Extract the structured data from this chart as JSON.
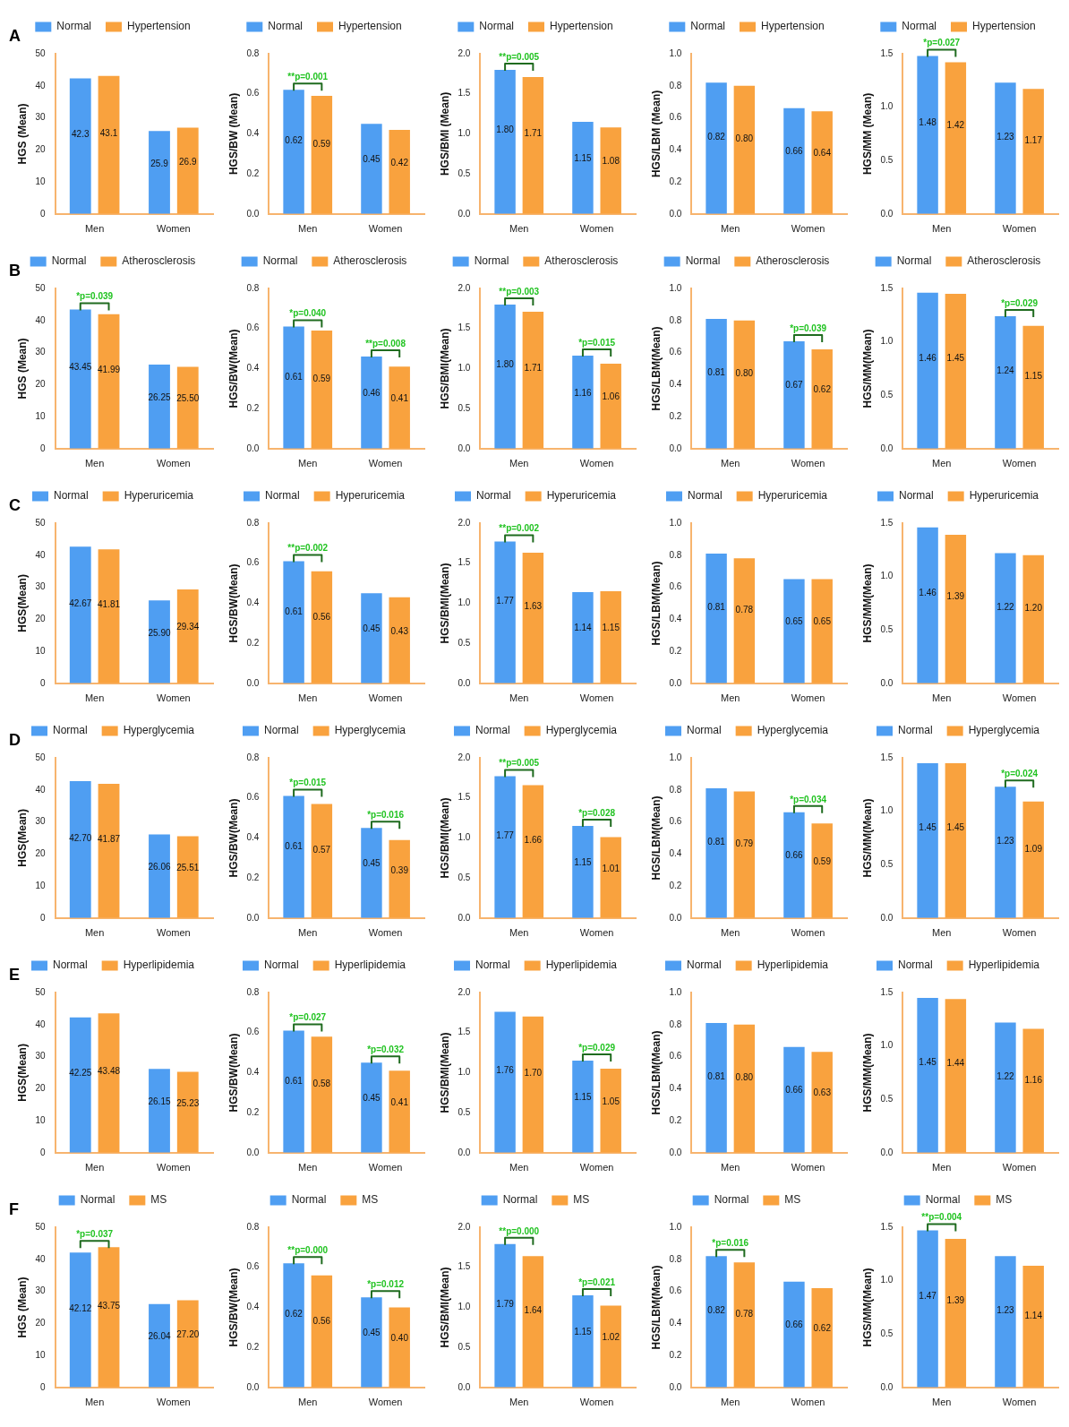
{
  "chart_data": [
    {
      "type": "bar",
      "categories": [
        "Men",
        "Women"
      ],
      "ylabel": "HGS (Mean)",
      "ylim": [
        0,
        50
      ],
      "yticks": [
        0,
        10,
        20,
        30,
        40,
        50
      ],
      "legend": "top",
      "annotations": [
        "A"
      ],
      "series": [
        {
          "name": "Normal",
          "color": "#4f9ef2",
          "values": [
            42.3,
            25.9
          ],
          "value_labels": [
            "42.3",
            "25.9"
          ]
        },
        {
          "name": "Hypertension",
          "color": "#f9a23e",
          "values": [
            43.1,
            26.9
          ],
          "value_labels": [
            "43.1",
            "26.9"
          ]
        }
      ]
    },
    {
      "type": "bar",
      "categories": [
        "Men",
        "Women"
      ],
      "ylabel": "HGS/BW (Mean)",
      "ylim": [
        0,
        0.8
      ],
      "yticks": [
        {
          "value": 0,
          "label": "0.0"
        },
        {
          "value": 0.2,
          "label": "0.2"
        },
        {
          "value": 0.4,
          "label": "0.4"
        },
        {
          "value": 0.6,
          "label": "0.6"
        },
        {
          "value": 0.8,
          "label": "0.8"
        }
      ],
      "legend": "top",
      "annotations": [
        {
          "text": "**p=0.001",
          "x": "Men",
          "y": 0.62
        }
      ],
      "series": [
        {
          "name": "Normal",
          "color": "#4f9ef2",
          "values": [
            0.62,
            0.45
          ],
          "value_labels": [
            "0.62",
            "0.45"
          ]
        },
        {
          "name": "Hypertension",
          "color": "#f9a23e",
          "values": [
            0.59,
            0.42
          ],
          "value_labels": [
            "0.59",
            "0.42"
          ]
        }
      ]
    },
    {
      "type": "bar",
      "categories": [
        "Men",
        "Women"
      ],
      "ylabel": "HGS/BMI (Mean)",
      "ylim": [
        0,
        2
      ],
      "yticks": [
        {
          "value": 0,
          "label": "0.0"
        },
        {
          "value": 0.5,
          "label": "0.5"
        },
        {
          "value": 1,
          "label": "1.0"
        },
        {
          "value": 1.5,
          "label": "1.5"
        },
        {
          "value": 2,
          "label": "2.0"
        }
      ],
      "legend": "top",
      "annotations": [
        {
          "text": "**p=0.005",
          "x": "Men",
          "y": 1.8
        }
      ],
      "series": [
        {
          "name": "Normal",
          "color": "#4f9ef2",
          "values": [
            1.8,
            1.15
          ],
          "value_labels": [
            "1.80",
            "1.15"
          ]
        },
        {
          "name": "Hypertension",
          "color": "#f9a23e",
          "values": [
            1.71,
            1.08
          ],
          "value_labels": [
            "1.71",
            "1.08"
          ]
        }
      ]
    },
    {
      "type": "bar",
      "categories": [
        "Men",
        "Women"
      ],
      "ylabel": "HGS/LBM (Mean)",
      "ylim": [
        0,
        1
      ],
      "yticks": [
        {
          "value": 0,
          "label": "0.0"
        },
        {
          "value": 0.2,
          "label": "0.2"
        },
        {
          "value": 0.4,
          "label": "0.4"
        },
        {
          "value": 0.6,
          "label": "0.6"
        },
        {
          "value": 0.8,
          "label": "0.8"
        },
        {
          "value": 1,
          "label": "1.0"
        }
      ],
      "legend": "top",
      "series": [
        {
          "name": "Normal",
          "color": "#4f9ef2",
          "values": [
            0.82,
            0.66
          ],
          "value_labels": [
            "0.82",
            "0.66"
          ]
        },
        {
          "name": "Hypertension",
          "color": "#f9a23e",
          "values": [
            0.8,
            0.64
          ],
          "value_labels": [
            "0.80",
            "0.64"
          ]
        }
      ]
    },
    {
      "type": "bar",
      "categories": [
        "Men",
        "Women"
      ],
      "ylabel": "HGS/MM (Mean)",
      "ylim": [
        0,
        1.5
      ],
      "yticks": [
        {
          "value": 0,
          "label": "0.0"
        },
        {
          "value": 0.5,
          "label": "0.5"
        },
        {
          "value": 1,
          "label": "1.0"
        },
        {
          "value": 1.5,
          "label": "1.5"
        }
      ],
      "legend": "top",
      "annotations": [
        {
          "text": "*p=0.027",
          "x": "Men",
          "y": 1.48
        }
      ],
      "series": [
        {
          "name": "Normal",
          "color": "#4f9ef2",
          "values": [
            1.48,
            1.23
          ],
          "value_labels": [
            "1.48",
            "1.23"
          ]
        },
        {
          "name": "Hypertension",
          "color": "#f9a23e",
          "values": [
            1.42,
            1.17
          ],
          "value_labels": [
            "1.42",
            "1.17"
          ]
        }
      ]
    },
    {
      "type": "bar",
      "categories": [
        "Men",
        "Women"
      ],
      "ylabel": "HGS (Mean)",
      "ylim": [
        0,
        50
      ],
      "yticks": [
        0,
        10,
        20,
        30,
        40,
        50
      ],
      "legend": "top",
      "annotations": [
        "B",
        {
          "text": "*p=0.039",
          "x": "Men",
          "y": 43.45
        }
      ],
      "series": [
        {
          "name": "Normal",
          "color": "#4f9ef2",
          "values": [
            43.45,
            26.25
          ],
          "value_labels": [
            "43.45",
            "26.25"
          ]
        },
        {
          "name": "Atherosclerosis",
          "color": "#f9a23e",
          "values": [
            41.99,
            25.5
          ],
          "value_labels": [
            "41.99",
            "25.50"
          ]
        }
      ]
    },
    {
      "type": "bar",
      "categories": [
        "Men",
        "Women"
      ],
      "ylabel": "HGS/BW(Mean)",
      "ylim": [
        0,
        0.8
      ],
      "yticks": [
        {
          "value": 0,
          "label": "0.0"
        },
        {
          "value": 0.2,
          "label": "0.2"
        },
        {
          "value": 0.4,
          "label": "0.4"
        },
        {
          "value": 0.6,
          "label": "0.6"
        },
        {
          "value": 0.8,
          "label": "0.8"
        }
      ],
      "legend": "top",
      "annotations": [
        {
          "text": "*p=0.040",
          "x": "Men",
          "y": 0.61
        },
        {
          "text": "**p=0.008",
          "x": "Women",
          "y": 0.46
        }
      ],
      "series": [
        {
          "name": "Normal",
          "color": "#4f9ef2",
          "values": [
            0.61,
            0.46
          ],
          "value_labels": [
            "0.61",
            "0.46"
          ]
        },
        {
          "name": "Atherosclerosis",
          "color": "#f9a23e",
          "values": [
            0.59,
            0.41
          ],
          "value_labels": [
            "0.59",
            "0.41"
          ]
        }
      ]
    },
    {
      "type": "bar",
      "categories": [
        "Men",
        "Women"
      ],
      "ylabel": "HGS/BMI(Mean)",
      "ylim": [
        0,
        2
      ],
      "yticks": [
        {
          "value": 0,
          "label": "0.0"
        },
        {
          "value": 0.5,
          "label": "0.5"
        },
        {
          "value": 1,
          "label": "1.0"
        },
        {
          "value": 1.5,
          "label": "1.5"
        },
        {
          "value": 2,
          "label": "2.0"
        }
      ],
      "legend": "top",
      "annotations": [
        {
          "text": "**p=0.003",
          "x": "Men",
          "y": 1.8
        },
        {
          "text": "*p=0.015",
          "x": "Women",
          "y": 1.16
        }
      ],
      "series": [
        {
          "name": "Normal",
          "color": "#4f9ef2",
          "values": [
            1.8,
            1.16
          ],
          "value_labels": [
            "1.80",
            "1.16"
          ]
        },
        {
          "name": "Atherosclerosis",
          "color": "#f9a23e",
          "values": [
            1.71,
            1.06
          ],
          "value_labels": [
            "1.71",
            "1.06"
          ]
        }
      ]
    },
    {
      "type": "bar",
      "categories": [
        "Men",
        "Women"
      ],
      "ylabel": "HGS/LBM(Mean)",
      "ylim": [
        0,
        1
      ],
      "yticks": [
        {
          "value": 0,
          "label": "0.0"
        },
        {
          "value": 0.2,
          "label": "0.2"
        },
        {
          "value": 0.4,
          "label": "0.4"
        },
        {
          "value": 0.6,
          "label": "0.6"
        },
        {
          "value": 0.8,
          "label": "0.8"
        },
        {
          "value": 1,
          "label": "1.0"
        }
      ],
      "legend": "top",
      "annotations": [
        {
          "text": "*p=0.039",
          "x": "Women",
          "y": 0.67
        }
      ],
      "series": [
        {
          "name": "Normal",
          "color": "#4f9ef2",
          "values": [
            0.81,
            0.67
          ],
          "value_labels": [
            "0.81",
            "0.67"
          ]
        },
        {
          "name": "Atherosclerosis",
          "color": "#f9a23e",
          "values": [
            0.8,
            0.62
          ],
          "value_labels": [
            "0.80",
            "0.62"
          ]
        }
      ]
    },
    {
      "type": "bar",
      "categories": [
        "Men",
        "Women"
      ],
      "ylabel": "HGS/MM(Mean)",
      "ylim": [
        0,
        1.5
      ],
      "yticks": [
        {
          "value": 0,
          "label": "0.0"
        },
        {
          "value": 0.5,
          "label": "0.5"
        },
        {
          "value": 1,
          "label": "1.0"
        },
        {
          "value": 1.5,
          "label": "1.5"
        }
      ],
      "legend": "top",
      "annotations": [
        {
          "text": "*p=0.029",
          "x": "Women",
          "y": 1.24
        }
      ],
      "series": [
        {
          "name": "Normal",
          "color": "#4f9ef2",
          "values": [
            1.46,
            1.24
          ],
          "value_labels": [
            "1.46",
            "1.24"
          ]
        },
        {
          "name": "Atherosclerosis",
          "color": "#f9a23e",
          "values": [
            1.45,
            1.15
          ],
          "value_labels": [
            "1.45",
            "1.15"
          ]
        }
      ]
    },
    {
      "type": "bar",
      "categories": [
        "Men",
        "Women"
      ],
      "ylabel": "HGS(Mean)",
      "ylim": [
        0,
        50
      ],
      "yticks": [
        0,
        10,
        20,
        30,
        40,
        50
      ],
      "legend": "top",
      "annotations": [
        "C"
      ],
      "series": [
        {
          "name": "Normal",
          "color": "#4f9ef2",
          "values": [
            42.67,
            25.9
          ],
          "value_labels": [
            "42.67",
            "25.90"
          ]
        },
        {
          "name": "Hyperuricemia",
          "color": "#f9a23e",
          "values": [
            41.81,
            29.34
          ],
          "value_labels": [
            "41.81",
            "29.34"
          ]
        }
      ]
    },
    {
      "type": "bar",
      "categories": [
        "Men",
        "Women"
      ],
      "ylabel": "HGS/BW(Mean)",
      "ylim": [
        0,
        0.8
      ],
      "yticks": [
        {
          "value": 0,
          "label": "0.0"
        },
        {
          "value": 0.2,
          "label": "0.2"
        },
        {
          "value": 0.4,
          "label": "0.4"
        },
        {
          "value": 0.6,
          "label": "0.6"
        },
        {
          "value": 0.8,
          "label": "0.8"
        }
      ],
      "legend": "top",
      "annotations": [
        {
          "text": "**p=0.002",
          "x": "Men",
          "y": 0.61
        }
      ],
      "series": [
        {
          "name": "Normal",
          "color": "#4f9ef2",
          "values": [
            0.61,
            0.45
          ],
          "value_labels": [
            "0.61",
            "0.45"
          ]
        },
        {
          "name": "Hyperuricemia",
          "color": "#f9a23e",
          "values": [
            0.56,
            0.43
          ],
          "value_labels": [
            "0.56",
            "0.43"
          ]
        }
      ]
    },
    {
      "type": "bar",
      "categories": [
        "Men",
        "Women"
      ],
      "ylabel": "HGS/BMI(Mean)",
      "ylim": [
        0,
        2
      ],
      "yticks": [
        {
          "value": 0,
          "label": "0.0"
        },
        {
          "value": 0.5,
          "label": "0.5"
        },
        {
          "value": 1,
          "label": "1.0"
        },
        {
          "value": 1.5,
          "label": "1.5"
        },
        {
          "value": 2,
          "label": "2.0"
        }
      ],
      "legend": "top",
      "annotations": [
        {
          "text": "**p=0.002",
          "x": "Men",
          "y": 1.77
        }
      ],
      "series": [
        {
          "name": "Normal",
          "color": "#4f9ef2",
          "values": [
            1.77,
            1.14
          ],
          "value_labels": [
            "1.77",
            "1.14"
          ]
        },
        {
          "name": "Hyperuricemia",
          "color": "#f9a23e",
          "values": [
            1.63,
            1.15
          ],
          "value_labels": [
            "1.63",
            "1.15"
          ]
        }
      ]
    },
    {
      "type": "bar",
      "categories": [
        "Men",
        "Women"
      ],
      "ylabel": "HGS/LBM(Mean)",
      "ylim": [
        0,
        1
      ],
      "yticks": [
        {
          "value": 0,
          "label": "0.0"
        },
        {
          "value": 0.2,
          "label": "0.2"
        },
        {
          "value": 0.4,
          "label": "0.4"
        },
        {
          "value": 0.6,
          "label": "0.6"
        },
        {
          "value": 0.8,
          "label": "0.8"
        },
        {
          "value": 1,
          "label": "1.0"
        }
      ],
      "legend": "top",
      "series": [
        {
          "name": "Normal",
          "color": "#4f9ef2",
          "values": [
            0.81,
            0.65
          ],
          "value_labels": [
            "0.81",
            "0.65"
          ]
        },
        {
          "name": "Hyperuricemia",
          "color": "#f9a23e",
          "values": [
            0.78,
            0.65
          ],
          "value_labels": [
            "0.78",
            "0.65"
          ]
        }
      ]
    },
    {
      "type": "bar",
      "categories": [
        "Men",
        "Women"
      ],
      "ylabel": "HGS/MM(Mean)",
      "ylim": [
        0,
        1.5
      ],
      "yticks": [
        {
          "value": 0,
          "label": "0.0"
        },
        {
          "value": 0.5,
          "label": "0.5"
        },
        {
          "value": 1,
          "label": "1.0"
        },
        {
          "value": 1.5,
          "label": "1.5"
        }
      ],
      "legend": "top",
      "series": [
        {
          "name": "Normal",
          "color": "#4f9ef2",
          "values": [
            1.46,
            1.22
          ],
          "value_labels": [
            "1.46",
            "1.22"
          ]
        },
        {
          "name": "Hyperuricemia",
          "color": "#f9a23e",
          "values": [
            1.39,
            1.2
          ],
          "value_labels": [
            "1.39",
            "1.20"
          ]
        }
      ]
    },
    {
      "type": "bar",
      "categories": [
        "Men",
        "Women"
      ],
      "ylabel": "HGS(Mean)",
      "ylim": [
        0,
        50
      ],
      "yticks": [
        0,
        10,
        20,
        30,
        40,
        50
      ],
      "legend": "top",
      "annotations": [
        "D"
      ],
      "series": [
        {
          "name": "Normal",
          "color": "#4f9ef2",
          "values": [
            42.7,
            26.06
          ],
          "value_labels": [
            "42.70",
            "26.06"
          ]
        },
        {
          "name": "Hyperglycemia",
          "color": "#f9a23e",
          "values": [
            41.87,
            25.51
          ],
          "value_labels": [
            "41.87",
            "25.51"
          ]
        }
      ]
    },
    {
      "type": "bar",
      "categories": [
        "Men",
        "Women"
      ],
      "ylabel": "HGS/BW(Mean)",
      "ylim": [
        0,
        0.8
      ],
      "yticks": [
        {
          "value": 0,
          "label": "0.0"
        },
        {
          "value": 0.2,
          "label": "0.2"
        },
        {
          "value": 0.4,
          "label": "0.4"
        },
        {
          "value": 0.6,
          "label": "0.6"
        },
        {
          "value": 0.8,
          "label": "0.8"
        }
      ],
      "legend": "top",
      "annotations": [
        {
          "text": "*p=0.015",
          "x": "Men",
          "y": 0.61
        },
        {
          "text": "*p=0.016",
          "x": "Women",
          "y": 0.45
        }
      ],
      "series": [
        {
          "name": "Normal",
          "color": "#4f9ef2",
          "values": [
            0.61,
            0.45
          ],
          "value_labels": [
            "0.61",
            "0.45"
          ]
        },
        {
          "name": "Hyperglycemia",
          "color": "#f9a23e",
          "values": [
            0.57,
            0.39
          ],
          "value_labels": [
            "0.57",
            "0.39"
          ]
        }
      ]
    },
    {
      "type": "bar",
      "categories": [
        "Men",
        "Women"
      ],
      "ylabel": "HGS/BMI(Mean)",
      "ylim": [
        0,
        2
      ],
      "yticks": [
        {
          "value": 0,
          "label": "0.0"
        },
        {
          "value": 0.5,
          "label": "0.5"
        },
        {
          "value": 1,
          "label": "1.0"
        },
        {
          "value": 1.5,
          "label": "1.5"
        },
        {
          "value": 2,
          "label": "2.0"
        }
      ],
      "legend": "top",
      "annotations": [
        {
          "text": "**p=0.005",
          "x": "Men",
          "y": 1.77
        },
        {
          "text": "*p=0.028",
          "x": "Women",
          "y": 1.15
        }
      ],
      "series": [
        {
          "name": "Normal",
          "color": "#4f9ef2",
          "values": [
            1.77,
            1.15
          ],
          "value_labels": [
            "1.77",
            "1.15"
          ]
        },
        {
          "name": "Hyperglycemia",
          "color": "#f9a23e",
          "values": [
            1.66,
            1.01
          ],
          "value_labels": [
            "1.66",
            "1.01"
          ]
        }
      ]
    },
    {
      "type": "bar",
      "categories": [
        "Men",
        "Women"
      ],
      "ylabel": "HGS/LBM(Mean)",
      "ylim": [
        0,
        1
      ],
      "yticks": [
        {
          "value": 0,
          "label": "0.0"
        },
        {
          "value": 0.2,
          "label": "0.2"
        },
        {
          "value": 0.4,
          "label": "0.4"
        },
        {
          "value": 0.6,
          "label": "0.6"
        },
        {
          "value": 0.8,
          "label": "0.8"
        },
        {
          "value": 1,
          "label": "1.0"
        }
      ],
      "legend": "top",
      "annotations": [
        {
          "text": "*p=0.034",
          "x": "Women",
          "y": 0.66
        }
      ],
      "series": [
        {
          "name": "Normal",
          "color": "#4f9ef2",
          "values": [
            0.81,
            0.66
          ],
          "value_labels": [
            "0.81",
            "0.66"
          ]
        },
        {
          "name": "Hyperglycemia",
          "color": "#f9a23e",
          "values": [
            0.79,
            0.59
          ],
          "value_labels": [
            "0.79",
            "0.59"
          ]
        }
      ]
    },
    {
      "type": "bar",
      "categories": [
        "Men",
        "Women"
      ],
      "ylabel": "HGS/MM(Mean)",
      "ylim": [
        0,
        1.5
      ],
      "yticks": [
        {
          "value": 0,
          "label": "0.0"
        },
        {
          "value": 0.5,
          "label": "0.5"
        },
        {
          "value": 1,
          "label": "1.0"
        },
        {
          "value": 1.5,
          "label": "1.5"
        }
      ],
      "legend": "top",
      "annotations": [
        {
          "text": "*p=0.024",
          "x": "Women",
          "y": 1.23
        }
      ],
      "series": [
        {
          "name": "Normal",
          "color": "#4f9ef2",
          "values": [
            1.45,
            1.23
          ],
          "value_labels": [
            "1.45",
            "1.23"
          ]
        },
        {
          "name": "Hyperglycemia",
          "color": "#f9a23e",
          "values": [
            1.45,
            1.09
          ],
          "value_labels": [
            "1.45",
            "1.09"
          ]
        }
      ]
    },
    {
      "type": "bar",
      "categories": [
        "Men",
        "Women"
      ],
      "ylabel": "HGS(Mean)",
      "ylim": [
        0,
        50
      ],
      "yticks": [
        0,
        10,
        20,
        30,
        40,
        50
      ],
      "legend": "top",
      "annotations": [
        "E"
      ],
      "series": [
        {
          "name": "Normal",
          "color": "#4f9ef2",
          "values": [
            42.25,
            26.15
          ],
          "value_labels": [
            "42.25",
            "26.15"
          ]
        },
        {
          "name": "Hyperlipidemia",
          "color": "#f9a23e",
          "values": [
            43.48,
            25.23
          ],
          "value_labels": [
            "43.48",
            "25.23"
          ]
        }
      ]
    },
    {
      "type": "bar",
      "categories": [
        "Men",
        "Women"
      ],
      "ylabel": "HGS/BW(Mean)",
      "ylim": [
        0,
        0.8
      ],
      "yticks": [
        {
          "value": 0,
          "label": "0.0"
        },
        {
          "value": 0.2,
          "label": "0.2"
        },
        {
          "value": 0.4,
          "label": "0.4"
        },
        {
          "value": 0.6,
          "label": "0.6"
        },
        {
          "value": 0.8,
          "label": "0.8"
        }
      ],
      "legend": "top",
      "annotations": [
        {
          "text": "*p=0.027",
          "x": "Men",
          "y": 0.61
        },
        {
          "text": "*p=0.032",
          "x": "Women",
          "y": 0.45
        }
      ],
      "series": [
        {
          "name": "Normal",
          "color": "#4f9ef2",
          "values": [
            0.61,
            0.45
          ],
          "value_labels": [
            "0.61",
            "0.45"
          ]
        },
        {
          "name": "Hyperlipidemia",
          "color": "#f9a23e",
          "values": [
            0.58,
            0.41
          ],
          "value_labels": [
            "0.58",
            "0.41"
          ]
        }
      ]
    },
    {
      "type": "bar",
      "categories": [
        "Men",
        "Women"
      ],
      "ylabel": "HGS/BMI(Mean)",
      "ylim": [
        0,
        2
      ],
      "yticks": [
        {
          "value": 0,
          "label": "0.0"
        },
        {
          "value": 0.5,
          "label": "0.5"
        },
        {
          "value": 1,
          "label": "1.0"
        },
        {
          "value": 1.5,
          "label": "1.5"
        },
        {
          "value": 2,
          "label": "2.0"
        }
      ],
      "legend": "top",
      "annotations": [
        {
          "text": "*p=0.029",
          "x": "Women",
          "y": 1.15
        }
      ],
      "series": [
        {
          "name": "Normal",
          "color": "#4f9ef2",
          "values": [
            1.76,
            1.15
          ],
          "value_labels": [
            "1.76",
            "1.15"
          ]
        },
        {
          "name": "Hyperlipidemia",
          "color": "#f9a23e",
          "values": [
            1.7,
            1.05
          ],
          "value_labels": [
            "1.70",
            "1.05"
          ]
        }
      ]
    },
    {
      "type": "bar",
      "categories": [
        "Men",
        "Women"
      ],
      "ylabel": "HGS/LBM(Mean)",
      "ylim": [
        0,
        1
      ],
      "yticks": [
        {
          "value": 0,
          "label": "0.0"
        },
        {
          "value": 0.2,
          "label": "0.2"
        },
        {
          "value": 0.4,
          "label": "0.4"
        },
        {
          "value": 0.6,
          "label": "0.6"
        },
        {
          "value": 0.8,
          "label": "0.8"
        },
        {
          "value": 1,
          "label": "1.0"
        }
      ],
      "legend": "top",
      "series": [
        {
          "name": "Normal",
          "color": "#4f9ef2",
          "values": [
            0.81,
            0.66
          ],
          "value_labels": [
            "0.81",
            "0.66"
          ]
        },
        {
          "name": "Hyperlipidemia",
          "color": "#f9a23e",
          "values": [
            0.8,
            0.63
          ],
          "value_labels": [
            "0.80",
            "0.63"
          ]
        }
      ]
    },
    {
      "type": "bar",
      "categories": [
        "Men",
        "Women"
      ],
      "ylabel": "HGS/MM(Mean)",
      "ylim": [
        0,
        1.5
      ],
      "yticks": [
        {
          "value": 0,
          "label": "0.0"
        },
        {
          "value": 0.5,
          "label": "0.5"
        },
        {
          "value": 1,
          "label": "1.0"
        },
        {
          "value": 1.5,
          "label": "1.5"
        }
      ],
      "legend": "top",
      "series": [
        {
          "name": "Normal",
          "color": "#4f9ef2",
          "values": [
            1.45,
            1.22
          ],
          "value_labels": [
            "1.45",
            "1.22"
          ]
        },
        {
          "name": "Hyperlipidemia",
          "color": "#f9a23e",
          "values": [
            1.44,
            1.16
          ],
          "value_labels": [
            "1.44",
            "1.16"
          ]
        }
      ]
    },
    {
      "type": "bar",
      "categories": [
        "Men",
        "Women"
      ],
      "ylabel": "HGS (Mean)",
      "ylim": [
        0,
        50
      ],
      "yticks": [
        0,
        10,
        20,
        30,
        40,
        50
      ],
      "legend": "top",
      "annotations": [
        "F",
        {
          "text": "*p=0.037",
          "x": "Men",
          "y": 43.75
        }
      ],
      "series": [
        {
          "name": "Normal",
          "color": "#4f9ef2",
          "values": [
            42.12,
            26.04
          ],
          "value_labels": [
            "42.12",
            "26.04"
          ]
        },
        {
          "name": "MS",
          "color": "#f9a23e",
          "values": [
            43.75,
            27.2
          ],
          "value_labels": [
            "43.75",
            "27.20"
          ]
        }
      ]
    },
    {
      "type": "bar",
      "categories": [
        "Men",
        "Women"
      ],
      "ylabel": "HGS/BW(Mean)",
      "ylim": [
        0,
        0.8
      ],
      "yticks": [
        {
          "value": 0,
          "label": "0.0"
        },
        {
          "value": 0.2,
          "label": "0.2"
        },
        {
          "value": 0.4,
          "label": "0.4"
        },
        {
          "value": 0.6,
          "label": "0.6"
        },
        {
          "value": 0.8,
          "label": "0.8"
        }
      ],
      "legend": "top",
      "annotations": [
        {
          "text": "**p=0.000",
          "x": "Men",
          "y": 0.62
        },
        {
          "text": "*p=0.012",
          "x": "Women",
          "y": 0.45
        }
      ],
      "series": [
        {
          "name": "Normal",
          "color": "#4f9ef2",
          "values": [
            0.62,
            0.45
          ],
          "value_labels": [
            "0.62",
            "0.45"
          ]
        },
        {
          "name": "MS",
          "color": "#f9a23e",
          "values": [
            0.56,
            0.4
          ],
          "value_labels": [
            "0.56",
            "0.40"
          ]
        }
      ]
    },
    {
      "type": "bar",
      "categories": [
        "Men",
        "Women"
      ],
      "ylabel": "HGS/BMI(Mean)",
      "ylim": [
        0,
        2
      ],
      "yticks": [
        {
          "value": 0,
          "label": "0.0"
        },
        {
          "value": 0.5,
          "label": "0.5"
        },
        {
          "value": 1,
          "label": "1.0"
        },
        {
          "value": 1.5,
          "label": "1.5"
        },
        {
          "value": 2,
          "label": "2.0"
        }
      ],
      "legend": "top",
      "annotations": [
        {
          "text": "**p=0.000",
          "x": "Men",
          "y": 1.79
        },
        {
          "text": "*p=0.021",
          "x": "Women",
          "y": 1.15
        }
      ],
      "series": [
        {
          "name": "Normal",
          "color": "#4f9ef2",
          "values": [
            1.79,
            1.15
          ],
          "value_labels": [
            "1.79",
            "1.15"
          ]
        },
        {
          "name": "MS",
          "color": "#f9a23e",
          "values": [
            1.64,
            1.02
          ],
          "value_labels": [
            "1.64",
            "1.02"
          ]
        }
      ]
    },
    {
      "type": "bar",
      "categories": [
        "Men",
        "Women"
      ],
      "ylabel": "HGS/LBM(Mean)",
      "ylim": [
        0,
        1
      ],
      "yticks": [
        {
          "value": 0,
          "label": "0.0"
        },
        {
          "value": 0.2,
          "label": "0.2"
        },
        {
          "value": 0.4,
          "label": "0.4"
        },
        {
          "value": 0.6,
          "label": "0.6"
        },
        {
          "value": 0.8,
          "label": "0.8"
        },
        {
          "value": 1,
          "label": "1.0"
        }
      ],
      "legend": "top",
      "annotations": [
        {
          "text": "*p=0.016",
          "x": "Men",
          "y": 0.82
        }
      ],
      "series": [
        {
          "name": "Normal",
          "color": "#4f9ef2",
          "values": [
            0.82,
            0.66
          ],
          "value_labels": [
            "0.82",
            "0.66"
          ]
        },
        {
          "name": "MS",
          "color": "#f9a23e",
          "values": [
            0.78,
            0.62
          ],
          "value_labels": [
            "0.78",
            "0.62"
          ]
        }
      ]
    },
    {
      "type": "bar",
      "categories": [
        "Men",
        "Women"
      ],
      "ylabel": "HGS/MM(Mean)",
      "ylim": [
        0,
        1.5
      ],
      "yticks": [
        {
          "value": 0,
          "label": "0.0"
        },
        {
          "value": 0.5,
          "label": "0.5"
        },
        {
          "value": 1,
          "label": "1.0"
        },
        {
          "value": 1.5,
          "label": "1.5"
        }
      ],
      "legend": "top",
      "annotations": [
        {
          "text": "**p=0.004",
          "x": "Men",
          "y": 1.47
        }
      ],
      "series": [
        {
          "name": "Normal",
          "color": "#4f9ef2",
          "values": [
            1.47,
            1.23
          ],
          "value_labels": [
            "1.47",
            "1.23"
          ]
        },
        {
          "name": "MS",
          "color": "#f9a23e",
          "values": [
            1.39,
            1.14
          ],
          "value_labels": [
            "1.39",
            "1.14"
          ]
        }
      ]
    }
  ]
}
